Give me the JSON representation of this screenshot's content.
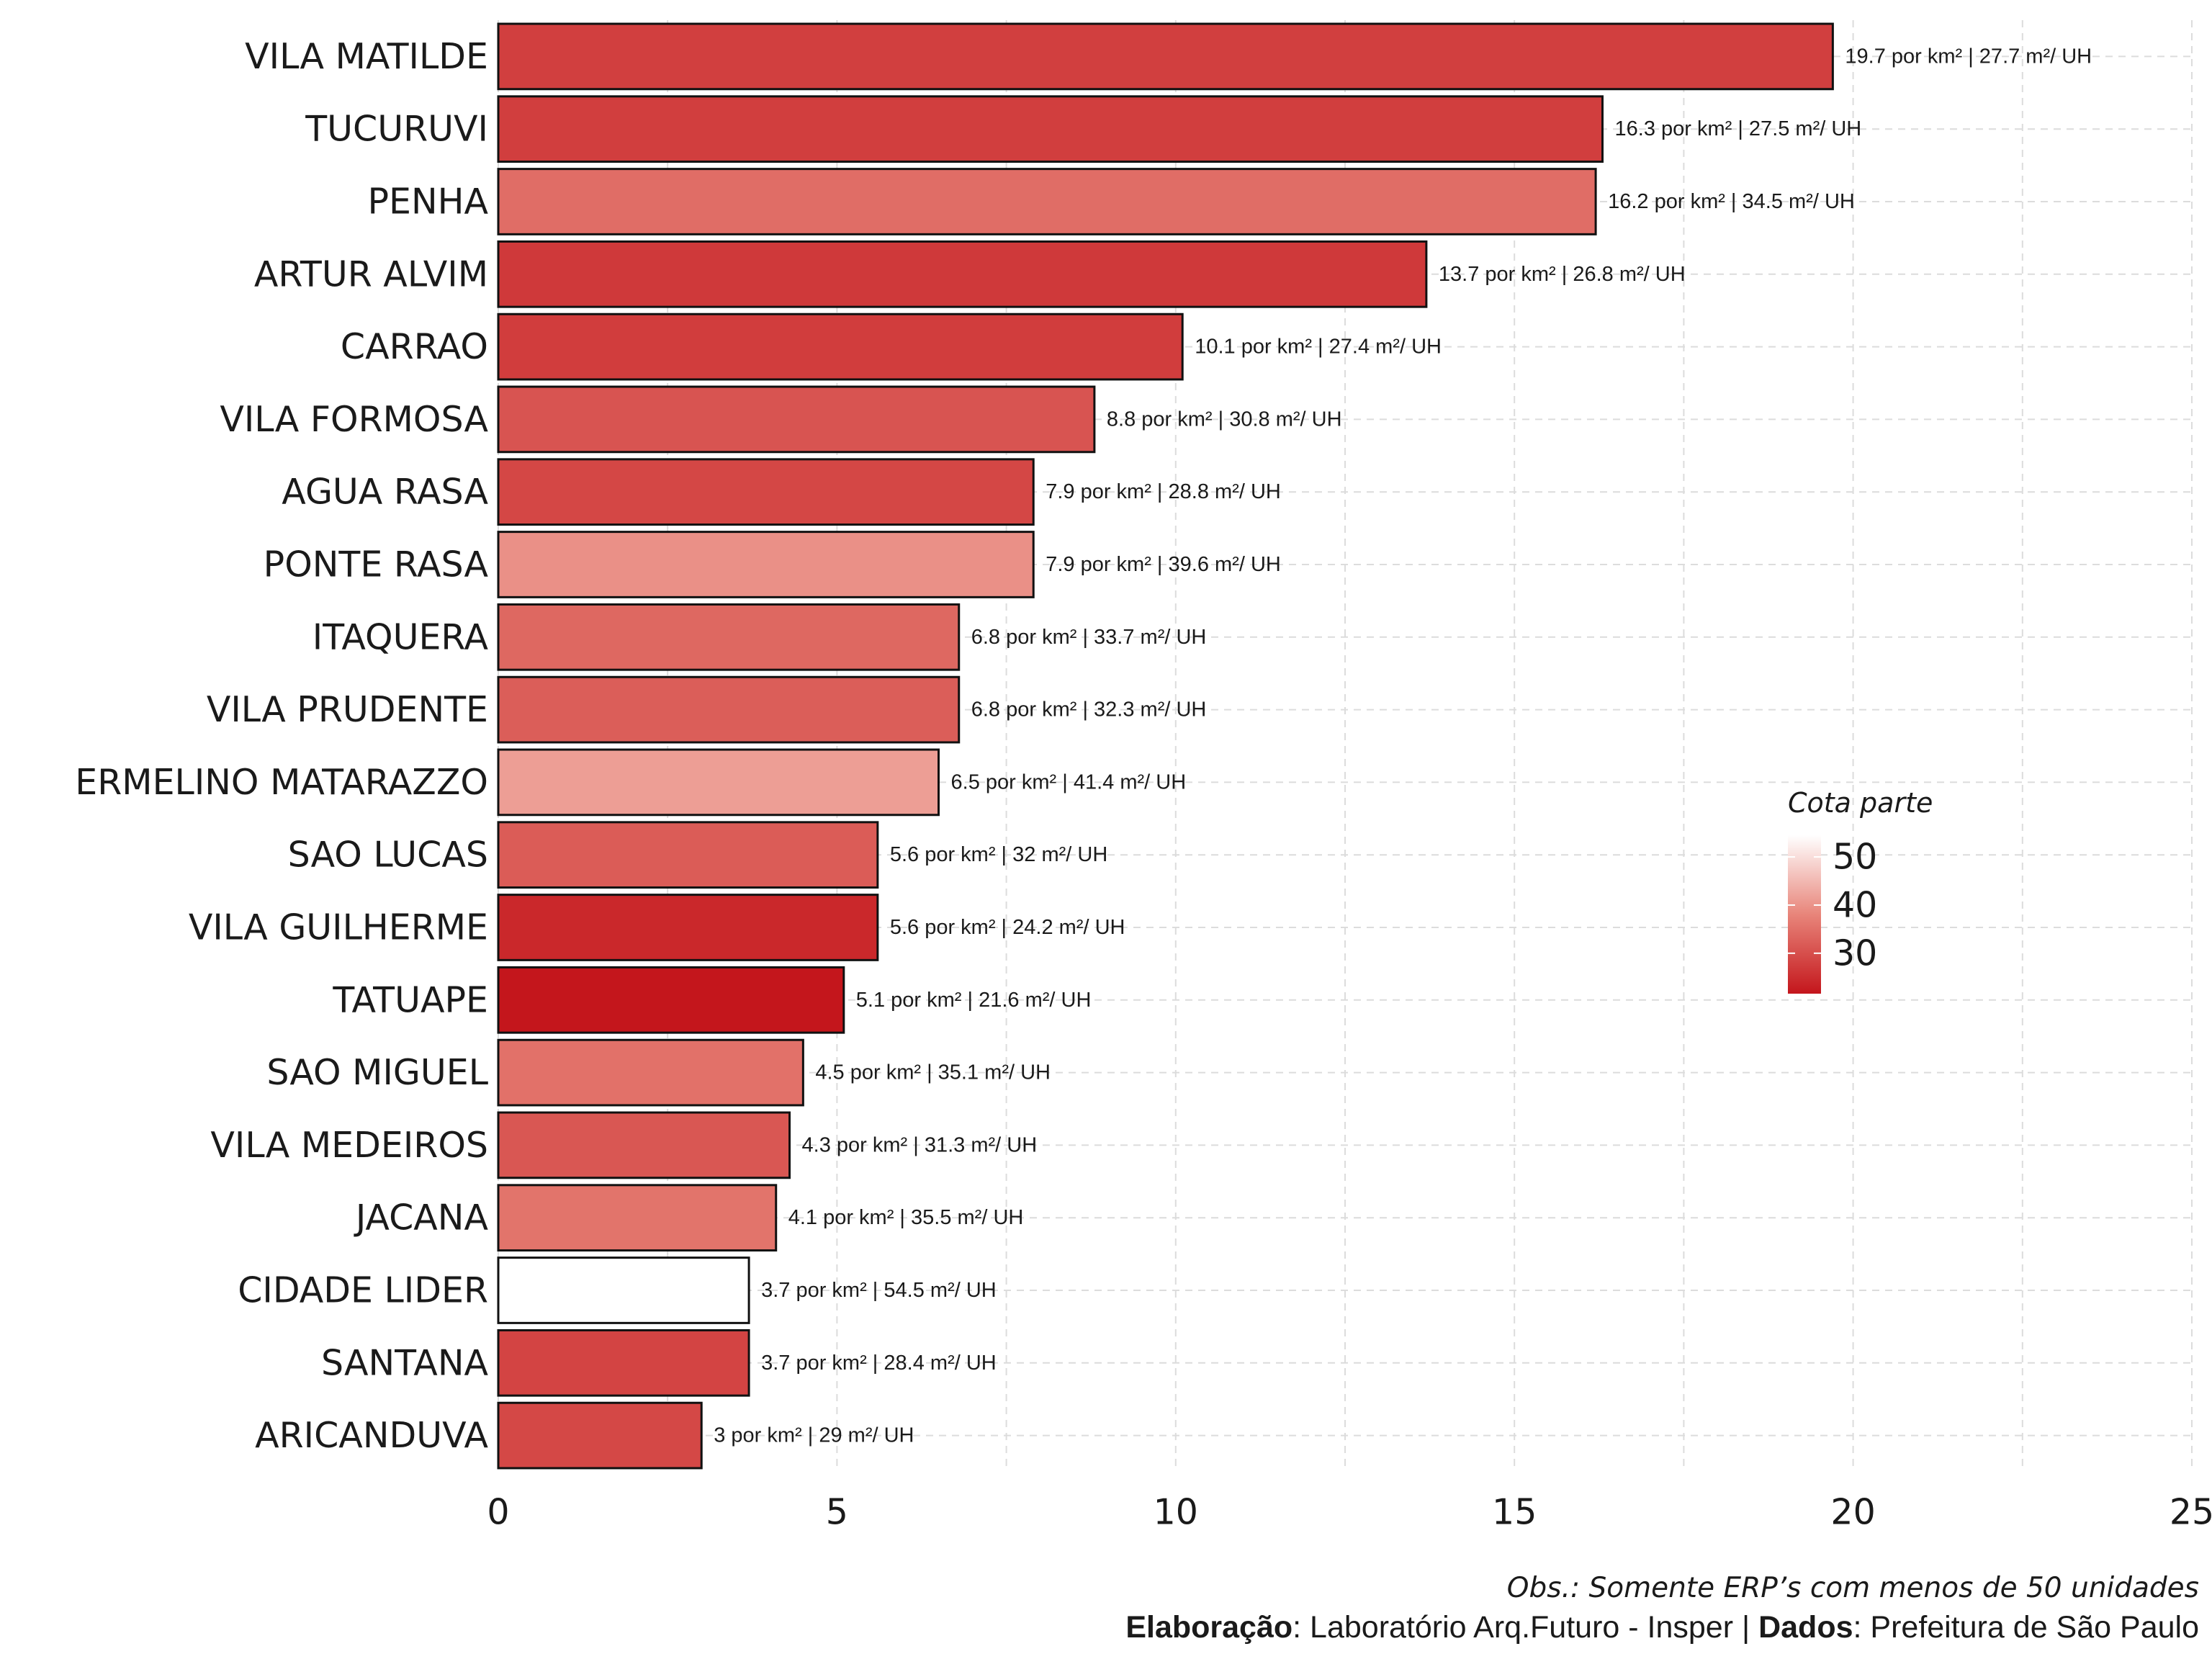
{
  "chart_data": {
    "type": "bar",
    "orientation": "horizontal",
    "categories": [
      "VILA MATILDE",
      "TUCURUVI",
      "PENHA",
      "ARTUR ALVIM",
      "CARRAO",
      "VILA FORMOSA",
      "AGUA RASA",
      "PONTE RASA",
      "ITAQUERA",
      "VILA PRUDENTE",
      "ERMELINO MATARAZZO",
      "SAO LUCAS",
      "VILA GUILHERME",
      "TATUAPE",
      "SAO MIGUEL",
      "VILA MEDEIROS",
      "JACANA",
      "CIDADE LIDER",
      "SANTANA",
      "ARICANDUVA"
    ],
    "values": [
      19.7,
      16.3,
      16.2,
      13.7,
      10.1,
      8.8,
      7.9,
      7.9,
      6.8,
      6.8,
      6.5,
      5.6,
      5.6,
      5.1,
      4.5,
      4.3,
      4.1,
      3.7,
      3.7,
      3.0
    ],
    "cota_parte": [
      27.7,
      27.5,
      34.5,
      26.8,
      27.4,
      30.8,
      28.8,
      39.6,
      33.7,
      32.3,
      41.4,
      32.0,
      24.2,
      21.6,
      35.1,
      31.3,
      35.5,
      54.5,
      28.4,
      29.0
    ],
    "data_labels": [
      "19.7 por km² | 27.7 m²/ UH",
      "16.3 por km² | 27.5 m²/ UH",
      "16.2 por km² | 34.5 m²/ UH",
      "13.7 por km² | 26.8 m²/ UH",
      "10.1 por km² | 27.4 m²/ UH",
      "8.8 por km² | 30.8 m²/ UH",
      "7.9 por km² | 28.8 m²/ UH",
      "7.9 por km² | 39.6 m²/ UH",
      "6.8 por km² | 33.7 m²/ UH",
      "6.8 por km² | 32.3 m²/ UH",
      "6.5 por km² | 41.4 m²/ UH",
      "5.6 por km² | 32 m²/ UH",
      "5.6 por km² | 24.2 m²/ UH",
      "5.1 por km² | 21.6 m²/ UH",
      "4.5 por km² | 35.1 m²/ UH",
      "4.3 por km² | 31.3 m²/ UH",
      "4.1 por km² | 35.5 m²/ UH",
      "3.7 por km² | 54.5 m²/ UH",
      "3.7 por km² | 28.4 m²/ UH",
      "3 por km² | 29 m²/ UH"
    ],
    "xlim": [
      0,
      25
    ],
    "x_ticks": [
      "0",
      "5",
      "10",
      "15",
      "20",
      "25"
    ],
    "x_tick_values": [
      0,
      5,
      10,
      15,
      20,
      25
    ],
    "grid": true,
    "xlabel": "",
    "ylabel": "",
    "legend": {
      "title": "Cota parte",
      "placement": "right",
      "ticks": [
        "50",
        "40",
        "30"
      ],
      "tick_values": [
        50,
        40,
        30
      ],
      "range": [
        21.6,
        54.5
      ],
      "color_low": "#c4161c",
      "color_high": "#ffffff"
    }
  },
  "caption": {
    "obs": "Obs.: Somente ERP’s com menos de 50 unidades",
    "elaboracao_label": "Elaboração",
    "elaboracao_value": ": Laboratório Arq.Futuro - Insper | ",
    "dados_label": "Dados",
    "dados_value": ": Prefeitura de São Paulo"
  }
}
